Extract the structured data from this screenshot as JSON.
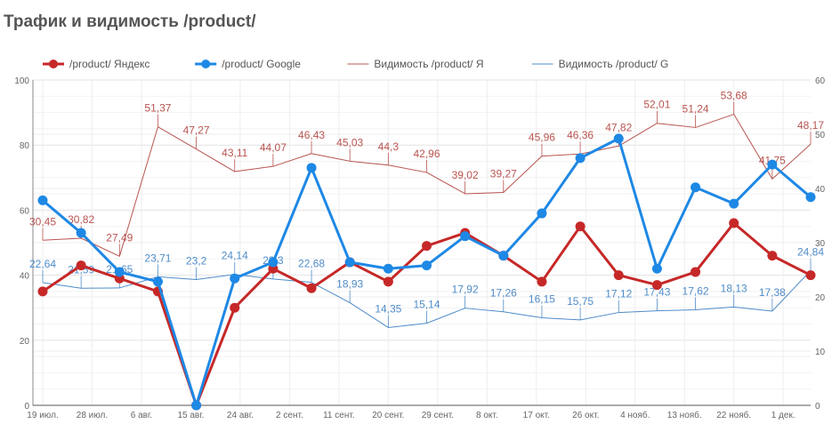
{
  "chart_data": {
    "type": "line",
    "title": "Трафик и видимость /product/",
    "y_left": {
      "range": [
        0,
        100
      ],
      "ticks": [
        "0",
        "20",
        "40",
        "60",
        "80",
        "100"
      ]
    },
    "y_right": {
      "range": [
        0,
        60
      ],
      "ticks": [
        "0",
        "10",
        "20",
        "30",
        "40",
        "50",
        "60"
      ]
    },
    "x_ticks": [
      "19 июл.",
      "28 июл.",
      "6 авг.",
      "15 авг.",
      "24 авг.",
      "2 сент.",
      "11 сент.",
      "20 сент.",
      "29 сент.",
      "8 окт.",
      "17 окт.",
      "26 окт.",
      "4 нояб.",
      "13 нояб.",
      "22 нояб.",
      "1 дек."
    ],
    "points_count": 21,
    "legend_position": "top",
    "grid": true,
    "series": [
      {
        "name": "/product/ Яндекс",
        "axis": "left",
        "color": "#c62828",
        "style": "marker-line",
        "values": [
          35,
          43,
          39,
          35,
          0,
          30,
          42,
          36,
          44,
          38,
          49,
          53,
          46,
          38,
          55,
          40,
          37,
          41,
          56,
          46,
          40
        ]
      },
      {
        "name": "/product/ Google",
        "axis": "left",
        "color": "#1e88e5",
        "style": "marker-line",
        "values": [
          63,
          53,
          41,
          38,
          0,
          39,
          44,
          73,
          44,
          42,
          43,
          52,
          46,
          59,
          76,
          82,
          42,
          67,
          62,
          74,
          64
        ]
      },
      {
        "name": "Видимость /product/ Я",
        "axis": "right",
        "color": "#b85450",
        "style": "thin-line",
        "values": [
          30.45,
          30.82,
          27.49,
          51.37,
          47.27,
          43.11,
          44.07,
          46.43,
          45.03,
          44.3,
          42.96,
          39.02,
          39.27,
          45.96,
          46.36,
          47.82,
          52.01,
          51.24,
          53.68,
          41.75,
          48.17
        ],
        "labels": [
          "30,45",
          "30,82",
          "27,49",
          "51,37",
          "47,27",
          "43,11",
          "44,07",
          "46,43",
          "45,03",
          "44,3",
          "42,96",
          "39,02",
          "39,27",
          "45,96",
          "46,36",
          "47,82",
          "52,01",
          "51,24",
          "53,68",
          "41,75",
          "48,17"
        ]
      },
      {
        "name": "Видимость /product/ G",
        "axis": "right",
        "color": "#4f8cc9",
        "style": "thin-line",
        "values": [
          22.64,
          21.59,
          21.65,
          23.71,
          23.2,
          24.14,
          23.3,
          22.68,
          18.93,
          14.35,
          15.14,
          17.92,
          17.26,
          16.15,
          15.75,
          17.12,
          17.43,
          17.62,
          18.13,
          17.38,
          24.84
        ],
        "labels": [
          "22,64",
          "21,59",
          "21,65",
          "23,71",
          "23,2",
          "24,14",
          "23,3",
          "22,68",
          "18,93",
          "14,35",
          "15,14",
          "17,92",
          "17,26",
          "16,15",
          "15,75",
          "17,12",
          "17,43",
          "17,62",
          "18,13",
          "17,38",
          "24,84"
        ]
      }
    ]
  }
}
